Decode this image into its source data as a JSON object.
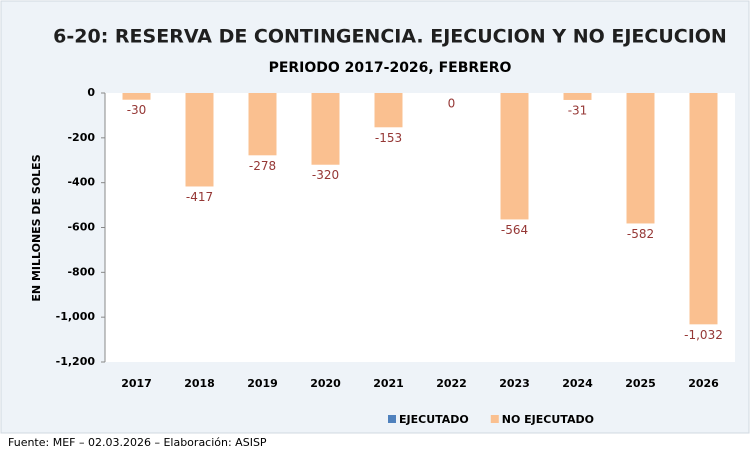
{
  "chart_data": {
    "type": "bar",
    "title": "6-20: RESERVA DE CONTINGENCIA. EJECUCION Y NO EJECUCION",
    "subtitle": "PERIODO 2017-2026, FEBRERO",
    "y_label": "EN MILLONES DE SOLES",
    "source": "Fuente:  MEF  – 02.03.2026 – Elaboración: ASISP",
    "categories": [
      "2017",
      "2018",
      "2019",
      "2020",
      "2021",
      "2022",
      "2023",
      "2024",
      "2025",
      "2026"
    ],
    "series": [
      {
        "name": "EJECUTADO",
        "color": "#4f81bd",
        "values": [
          null,
          null,
          null,
          null,
          null,
          null,
          null,
          null,
          null,
          null
        ]
      },
      {
        "name": "NO EJECUTADO",
        "color": "#fac090",
        "values": [
          -30,
          -417,
          -278,
          -320,
          -153,
          0,
          -564,
          -31,
          -582,
          -1032
        ],
        "value_labels": [
          "-30",
          "-417",
          "-278",
          "-320",
          "-153",
          "0",
          "-564",
          "-31",
          "-582",
          "-1,032"
        ]
      }
    ],
    "ylim": [
      -1200,
      0
    ],
    "yticks": [
      0,
      -200,
      -400,
      -600,
      -800,
      {
        "value": -1000,
        "label": "-1,000"
      },
      {
        "value": -1200,
        "label": "-1,200"
      }
    ],
    "grid": false,
    "legend": "bottom"
  }
}
